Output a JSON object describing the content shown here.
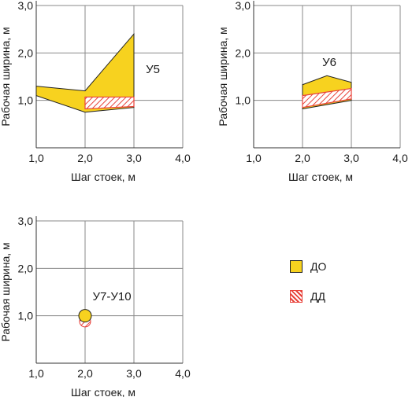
{
  "colors": {
    "do_fill": "#F7D21F",
    "do_stroke": "#222222",
    "dd_stroke": "#E8423A",
    "grid": "#888888"
  },
  "legend": [
    {
      "label": "ДО",
      "kind": "do"
    },
    {
      "label": "ДД",
      "kind": "dd"
    }
  ],
  "chart_data": [
    {
      "type": "area",
      "title": "",
      "panel_label": "У5",
      "xlabel": "Шаг стоек, м",
      "ylabel": "Рабочая ширина, м",
      "xlim": [
        1.0,
        4.0
      ],
      "ylim": [
        0.0,
        3.0
      ],
      "x_ticks": [
        "1,0",
        "2,0",
        "3,0",
        "4,0"
      ],
      "y_ticks": [
        "1,0",
        "2,0",
        "3,0"
      ],
      "grid": true,
      "series": [
        {
          "name": "ДО",
          "kind": "do",
          "upper": [
            [
              1.0,
              1.3
            ],
            [
              2.0,
              1.2
            ],
            [
              3.0,
              2.4
            ]
          ],
          "lower": [
            [
              1.0,
              1.1
            ],
            [
              2.0,
              0.75
            ],
            [
              3.0,
              0.85
            ]
          ]
        },
        {
          "name": "ДД",
          "kind": "dd",
          "upper": [
            [
              2.0,
              1.07
            ],
            [
              3.0,
              1.07
            ]
          ],
          "lower": [
            [
              2.0,
              0.82
            ],
            [
              3.0,
              0.87
            ]
          ]
        }
      ]
    },
    {
      "type": "area",
      "title": "",
      "panel_label": "У6",
      "xlabel": "Шаг стоек, м",
      "ylabel": "Рабочая ширина, м",
      "xlim": [
        1.0,
        4.0
      ],
      "ylim": [
        0.0,
        3.0
      ],
      "x_ticks": [
        "1,0",
        "2,0",
        "3,0",
        "4,0"
      ],
      "y_ticks": [
        "1,0",
        "2,0",
        "3,0"
      ],
      "grid": true,
      "series": [
        {
          "name": "ДО",
          "kind": "do",
          "upper": [
            [
              2.0,
              1.33
            ],
            [
              2.5,
              1.52
            ],
            [
              3.0,
              1.38
            ]
          ],
          "lower": [
            [
              2.0,
              0.82
            ],
            [
              3.0,
              1.0
            ]
          ]
        },
        {
          "name": "ДД",
          "kind": "dd",
          "upper": [
            [
              2.0,
              1.1
            ],
            [
              3.0,
              1.25
            ]
          ],
          "lower": [
            [
              2.0,
              0.85
            ],
            [
              3.0,
              1.03
            ]
          ]
        }
      ]
    },
    {
      "type": "scatter",
      "title": "",
      "panel_label": "У7-У10",
      "xlabel": "Шаг стоек, м",
      "ylabel": "Рабочая ширина, м",
      "xlim": [
        1.0,
        4.0
      ],
      "ylim": [
        0.0,
        3.0
      ],
      "x_ticks": [
        "1,0",
        "2,0",
        "3,0",
        "4,0"
      ],
      "y_ticks": [
        "1,0",
        "2,0",
        "3,0"
      ],
      "grid": true,
      "series": [
        {
          "name": "ДД",
          "kind": "dd",
          "points": [
            [
              2.0,
              0.88
            ]
          ]
        },
        {
          "name": "ДО",
          "kind": "do",
          "points": [
            [
              2.0,
              1.0
            ]
          ]
        }
      ]
    }
  ]
}
